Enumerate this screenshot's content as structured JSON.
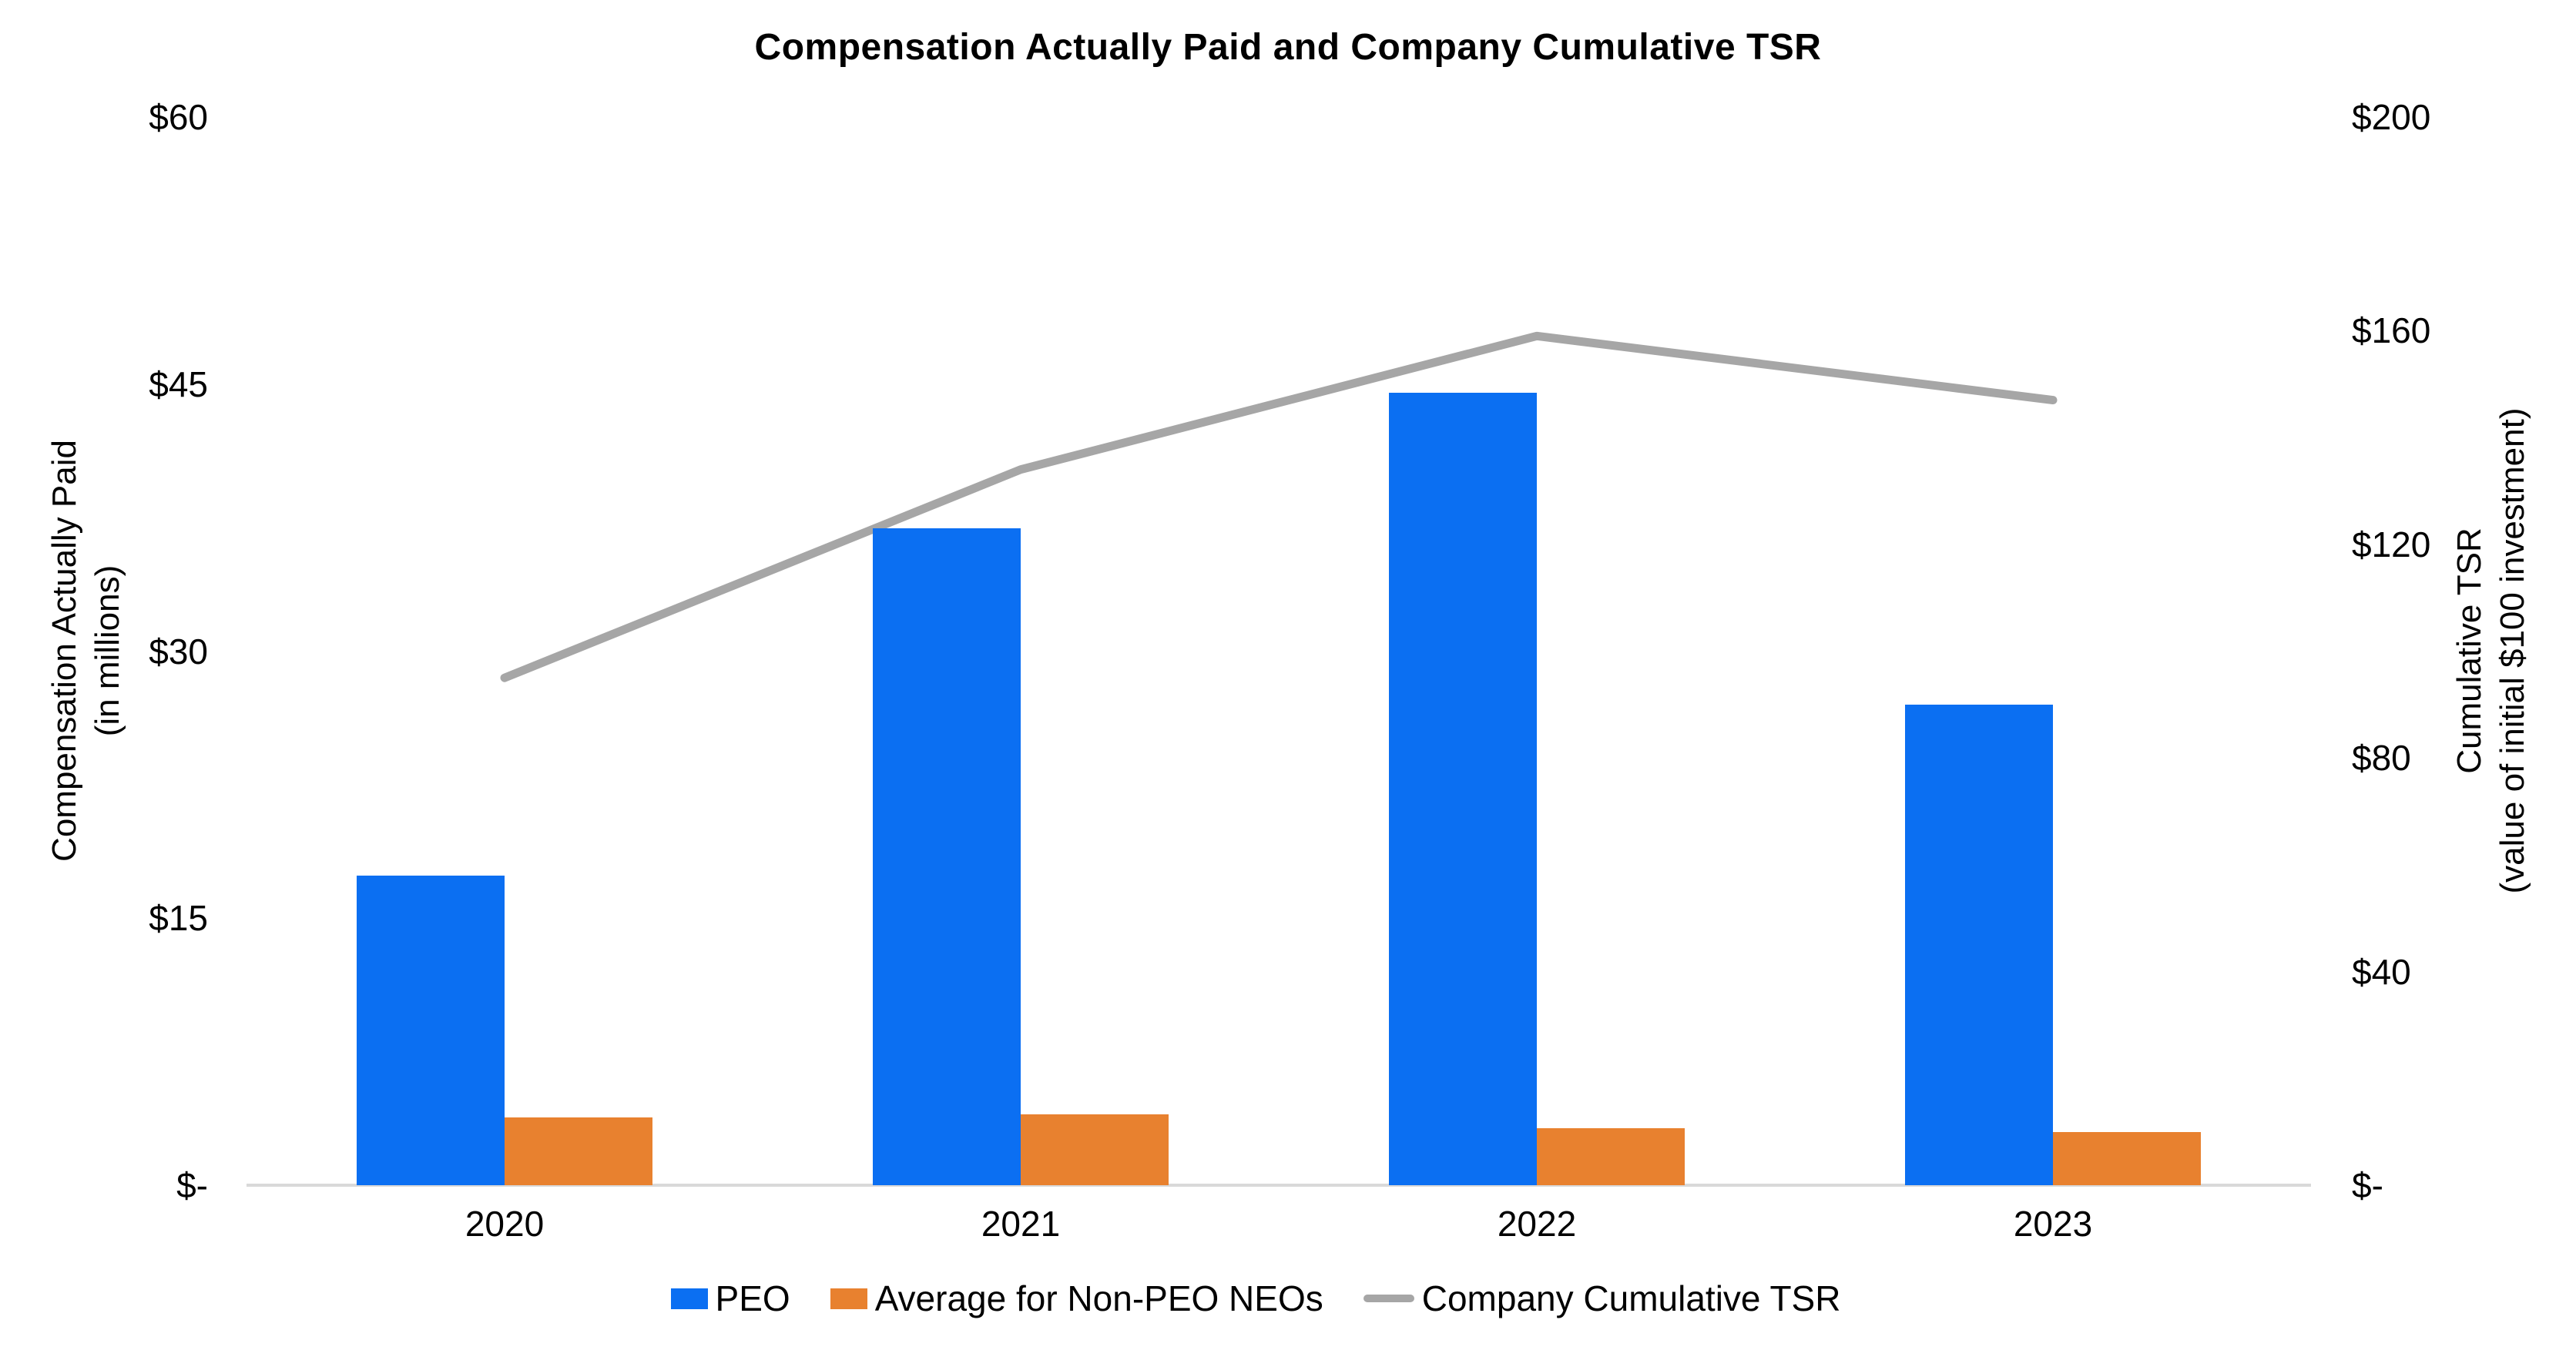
{
  "chart_data": {
    "type": "bar",
    "combo": "clustered bars (left axis) with overlay line (right axis)",
    "title": "Compensation Actually Paid and Company Cumulative TSR",
    "categories": [
      "2020",
      "2021",
      "2022",
      "2023"
    ],
    "series": [
      {
        "name": "PEO",
        "type": "bar",
        "axis": "left",
        "color": "#0b6ff2",
        "values": [
          17.4,
          36.9,
          44.5,
          27.0
        ]
      },
      {
        "name": "Average for Non-PEO NEOs",
        "type": "bar",
        "axis": "left",
        "color": "#e8812f",
        "values": [
          3.8,
          4.0,
          3.2,
          3.0
        ]
      },
      {
        "name": "Company Cumulative TSR",
        "type": "line",
        "axis": "right",
        "color": "#a6a6a6",
        "values": [
          95,
          134,
          159,
          147
        ]
      }
    ],
    "left_axis": {
      "title_line1": "Compensation Actually Paid",
      "title_line2": "(in millions)",
      "ticks": [
        "$-",
        "$15",
        "$30",
        "$45",
        "$60"
      ],
      "tick_values": [
        0,
        15,
        30,
        45,
        60
      ],
      "min": 0,
      "max": 60
    },
    "right_axis": {
      "title_line1": "Cumulative TSR",
      "title_line2": "(value of initial $100 investment)",
      "ticks": [
        "$-",
        "$40",
        "$80",
        "$120",
        "$160",
        "$200"
      ],
      "tick_values": [
        0,
        40,
        80,
        120,
        160,
        200
      ],
      "min": 0,
      "max": 200
    },
    "grid": false,
    "legend_position": "bottom",
    "baseline_color": "#d9d9d9"
  }
}
